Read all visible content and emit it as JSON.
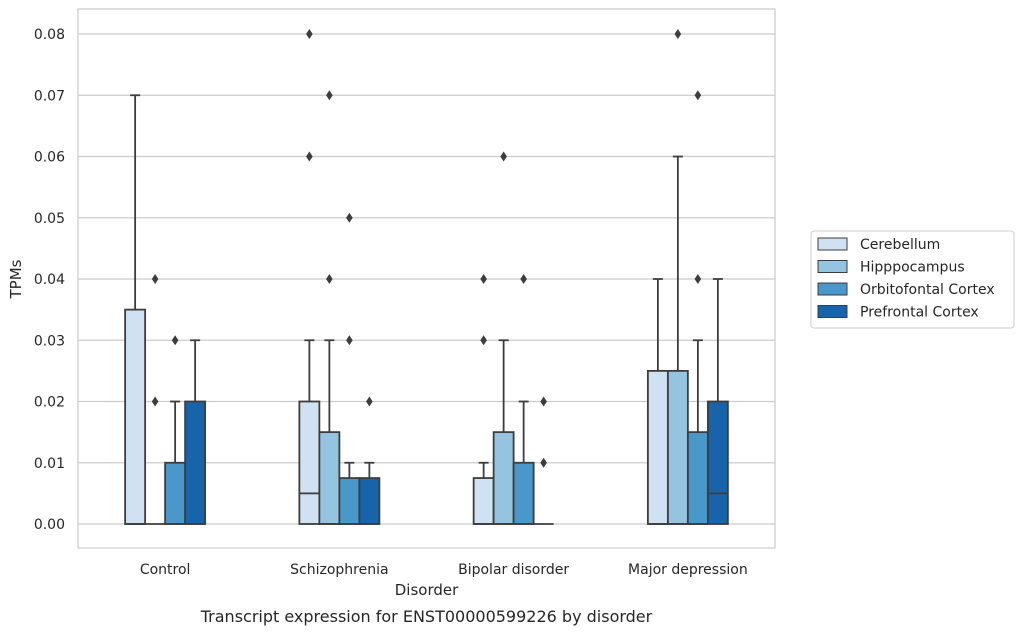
{
  "chart_data": {
    "type": "box",
    "caption": "Transcript expression for ENST00000599226 by disorder",
    "xlabel": "Disorder",
    "ylabel": "TPMs",
    "ylim": [
      -0.004,
      0.084
    ],
    "yticks": [
      0.0,
      0.01,
      0.02,
      0.03,
      0.04,
      0.05,
      0.06,
      0.07,
      0.08
    ],
    "ytick_labels": [
      "0.00",
      "0.01",
      "0.02",
      "0.03",
      "0.04",
      "0.05",
      "0.06",
      "0.07",
      "0.08"
    ],
    "grid": "horizontal",
    "legend_position": "right",
    "categories": [
      "Control",
      "Schizophrenia",
      "Bipolar disorder",
      "Major depression"
    ],
    "series": [
      {
        "name": "Cerebellum",
        "color": "#d0e1f2",
        "boxes": [
          {
            "q1": 0.0,
            "median": 0.0,
            "q3": 0.035,
            "whisker_low": 0.0,
            "whisker_high": 0.07,
            "outliers": []
          },
          {
            "q1": 0.0,
            "median": 0.005,
            "q3": 0.02,
            "whisker_low": 0.0,
            "whisker_high": 0.03,
            "outliers": [
              0.06,
              0.08
            ]
          },
          {
            "q1": 0.0,
            "median": 0.0,
            "q3": 0.0075,
            "whisker_low": 0.0,
            "whisker_high": 0.01,
            "outliers": [
              0.03,
              0.04
            ]
          },
          {
            "q1": 0.0,
            "median": 0.0,
            "q3": 0.025,
            "whisker_low": 0.0,
            "whisker_high": 0.04,
            "outliers": []
          }
        ]
      },
      {
        "name": "Hipppocampus",
        "color": "#94c4df",
        "boxes": [
          {
            "q1": 0.0,
            "median": 0.0,
            "q3": 0.0,
            "whisker_low": 0.0,
            "whisker_high": 0.0,
            "outliers": [
              0.02,
              0.04
            ]
          },
          {
            "q1": 0.0,
            "median": 0.0,
            "q3": 0.015,
            "whisker_low": 0.0,
            "whisker_high": 0.03,
            "outliers": [
              0.04,
              0.07
            ]
          },
          {
            "q1": 0.0,
            "median": 0.0,
            "q3": 0.015,
            "whisker_low": 0.0,
            "whisker_high": 0.03,
            "outliers": [
              0.06
            ]
          },
          {
            "q1": 0.0,
            "median": 0.0,
            "q3": 0.025,
            "whisker_low": 0.0,
            "whisker_high": 0.06,
            "outliers": [
              0.08
            ]
          }
        ]
      },
      {
        "name": "Orbitofontal Cortex",
        "color": "#4a98c9",
        "boxes": [
          {
            "q1": 0.0,
            "median": 0.0,
            "q3": 0.01,
            "whisker_low": 0.0,
            "whisker_high": 0.02,
            "outliers": [
              0.03
            ]
          },
          {
            "q1": 0.0,
            "median": 0.0,
            "q3": 0.0075,
            "whisker_low": 0.0,
            "whisker_high": 0.01,
            "outliers": [
              0.03,
              0.05
            ]
          },
          {
            "q1": 0.0,
            "median": 0.0,
            "q3": 0.01,
            "whisker_low": 0.0,
            "whisker_high": 0.02,
            "outliers": [
              0.04
            ]
          },
          {
            "q1": 0.0,
            "median": 0.0,
            "q3": 0.015,
            "whisker_low": 0.0,
            "whisker_high": 0.03,
            "outliers": [
              0.04,
              0.07
            ]
          }
        ]
      },
      {
        "name": "Prefrontal Cortex",
        "color": "#1764ab",
        "boxes": [
          {
            "q1": 0.0,
            "median": 0.0,
            "q3": 0.02,
            "whisker_low": 0.0,
            "whisker_high": 0.03,
            "outliers": []
          },
          {
            "q1": 0.0,
            "median": 0.0,
            "q3": 0.0075,
            "whisker_low": 0.0,
            "whisker_high": 0.01,
            "outliers": [
              0.02
            ]
          },
          {
            "q1": 0.0,
            "median": 0.0,
            "q3": 0.0,
            "whisker_low": 0.0,
            "whisker_high": 0.0,
            "outliers": [
              0.01,
              0.02
            ]
          },
          {
            "q1": 0.0,
            "median": 0.005,
            "q3": 0.02,
            "whisker_low": 0.0,
            "whisker_high": 0.04,
            "outliers": []
          }
        ]
      }
    ]
  }
}
